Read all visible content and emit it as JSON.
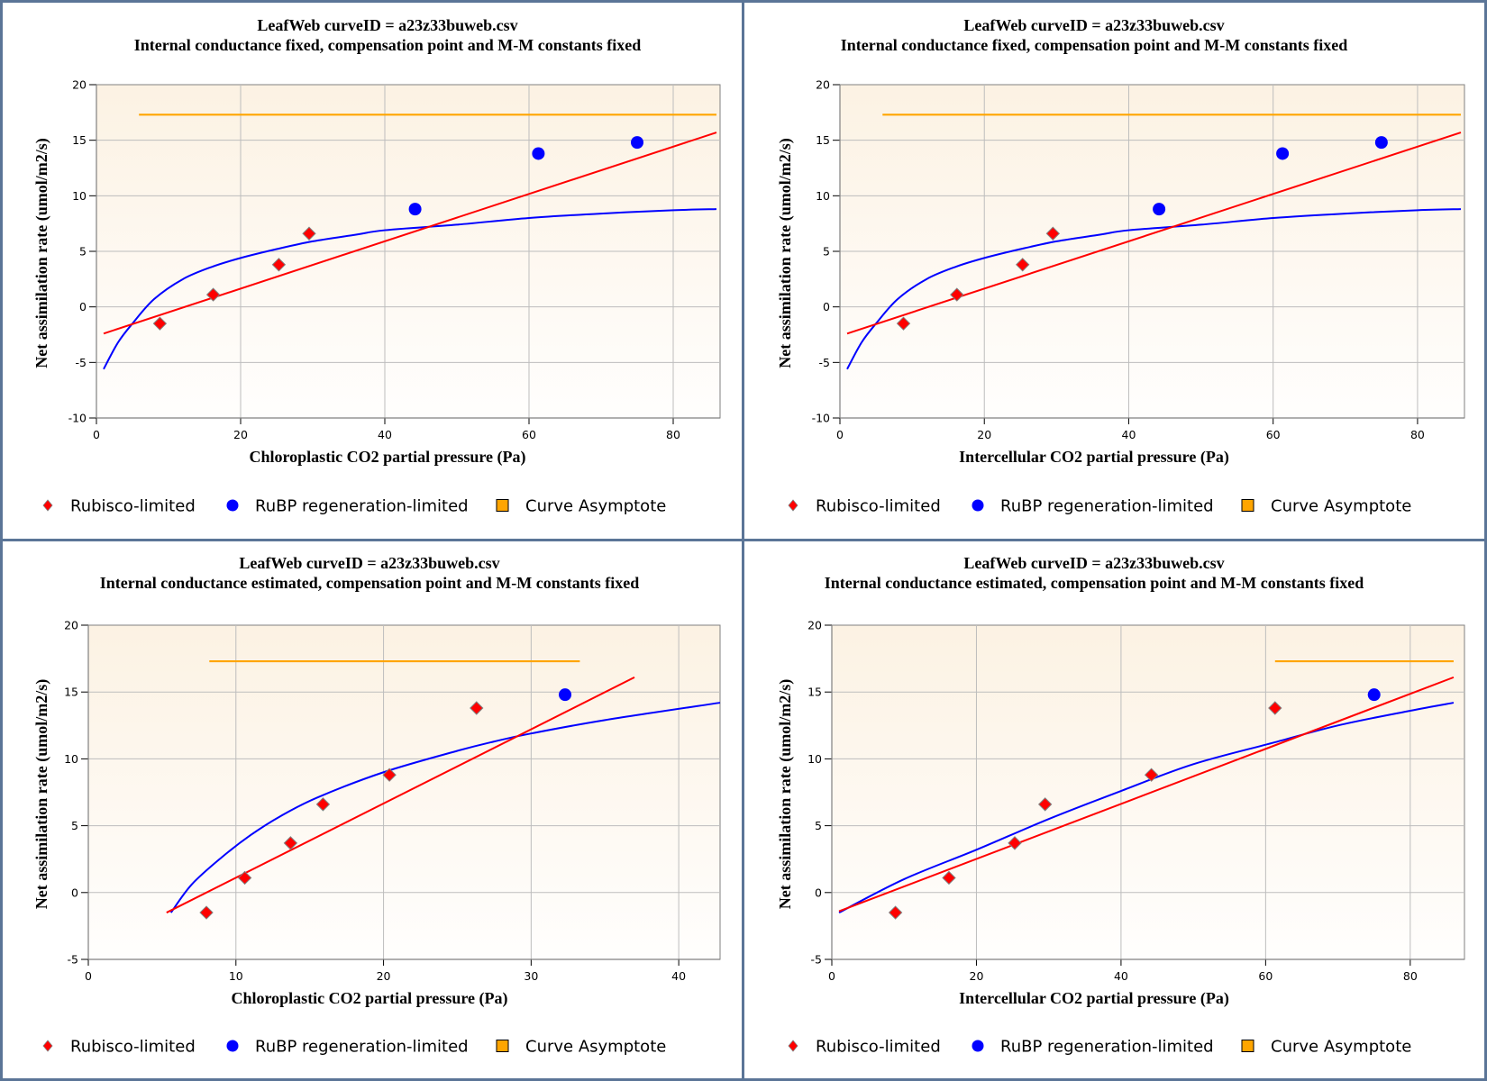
{
  "colors": {
    "rubisco": "#ff0000",
    "rubisco_outline": "#808080",
    "rubp": "#0000ff",
    "asymptote": "#ffa500",
    "panel_border": "#5b7597",
    "plot_bg_top": "#fcf2e3",
    "plot_bg_bottom": "#fffefd",
    "grid": "#bdbdbd",
    "axis": "#808080"
  },
  "chart_data": [
    {
      "type": "scatter",
      "title": "LeafWeb curveID = a23z33buweb.csv",
      "subtitle": "Internal conductance fixed, compensation point and M-M constants fixed",
      "xlabel": "Chloroplastic CO2 partial pressure (Pa)",
      "ylabel": "Net assimilation rate (umol/m2/s)",
      "xlim": [
        0,
        86.5
      ],
      "ylim": [
        -10,
        20
      ],
      "xticks": [
        0,
        20,
        40,
        60,
        80
      ],
      "yticks": [
        -10,
        -5,
        0,
        5,
        10,
        15,
        20
      ],
      "grid": true,
      "legend_position": "bottom",
      "legend": [
        "Rubisco-limited",
        "RuBP regeneration-limited",
        "Curve Asymptote"
      ],
      "series": [
        {
          "name": "Rubisco-limited",
          "kind": "points",
          "marker": "diamond",
          "x": [
            8.8,
            16.2,
            25.3,
            29.5
          ],
          "y": [
            -1.5,
            1.1,
            3.8,
            6.6
          ]
        },
        {
          "name": "RuBP regeneration-limited",
          "kind": "points",
          "marker": "circle",
          "x": [
            44.2,
            61.3,
            75.0
          ],
          "y": [
            8.8,
            13.8,
            14.8
          ]
        },
        {
          "name": "Rubisco-limited fit",
          "kind": "line",
          "x": [
            1,
            86
          ],
          "y": [
            -2.4,
            15.7
          ]
        },
        {
          "name": "RuBP regeneration-limited fit",
          "kind": "curve",
          "x": [
            1,
            3,
            5,
            8,
            12,
            16,
            20,
            25,
            30,
            36,
            40,
            50,
            60,
            70,
            80,
            86
          ],
          "y": [
            -5.6,
            -3.2,
            -1.5,
            0.7,
            2.5,
            3.6,
            4.4,
            5.2,
            5.9,
            6.5,
            6.9,
            7.4,
            8.0,
            8.4,
            8.7,
            8.8
          ]
        },
        {
          "name": "Curve Asymptote",
          "kind": "hline",
          "x": [
            5.9,
            86
          ],
          "y": [
            17.3,
            17.3
          ]
        }
      ]
    },
    {
      "type": "scatter",
      "title": "LeafWeb curveID = a23z33buweb.csv",
      "subtitle": "Internal conductance fixed, compensation point and M-M constants fixed",
      "xlabel": "Intercellular CO2 partial pressure (Pa)",
      "ylabel": "Net assimilation rate (umol/m2/s)",
      "xlim": [
        0,
        86.5
      ],
      "ylim": [
        -10,
        20
      ],
      "xticks": [
        0,
        20,
        40,
        60,
        80
      ],
      "yticks": [
        -10,
        -5,
        0,
        5,
        10,
        15,
        20
      ],
      "grid": true,
      "legend_position": "bottom",
      "legend": [
        "Rubisco-limited",
        "RuBP regeneration-limited",
        "Curve Asymptote"
      ],
      "series": [
        {
          "name": "Rubisco-limited",
          "kind": "points",
          "marker": "diamond",
          "x": [
            8.8,
            16.2,
            25.3,
            29.5
          ],
          "y": [
            -1.5,
            1.1,
            3.8,
            6.6
          ]
        },
        {
          "name": "RuBP regeneration-limited",
          "kind": "points",
          "marker": "circle",
          "x": [
            44.2,
            61.3,
            75.0
          ],
          "y": [
            8.8,
            13.8,
            14.8
          ]
        },
        {
          "name": "Rubisco-limited fit",
          "kind": "line",
          "x": [
            1,
            86
          ],
          "y": [
            -2.4,
            15.7
          ]
        },
        {
          "name": "RuBP regeneration-limited fit",
          "kind": "curve",
          "x": [
            1,
            3,
            5,
            8,
            12,
            16,
            20,
            25,
            30,
            36,
            40,
            50,
            60,
            70,
            80,
            86
          ],
          "y": [
            -5.6,
            -3.2,
            -1.5,
            0.7,
            2.5,
            3.6,
            4.4,
            5.2,
            5.9,
            6.5,
            6.9,
            7.4,
            8.0,
            8.4,
            8.7,
            8.8
          ]
        },
        {
          "name": "Curve Asymptote",
          "kind": "hline",
          "x": [
            5.9,
            86
          ],
          "y": [
            17.3,
            17.3
          ]
        }
      ]
    },
    {
      "type": "scatter",
      "title": "LeafWeb curveID = a23z33buweb.csv",
      "subtitle": "Internal conductance estimated, compensation point and M-M constants fixed",
      "xlabel": "Chloroplastic CO2 partial pressure (Pa)",
      "ylabel": "Net assimilation rate (umol/m2/s)",
      "xlim": [
        0,
        42.8
      ],
      "ylim": [
        -5,
        20
      ],
      "xticks": [
        0,
        10,
        20,
        30,
        40
      ],
      "yticks": [
        -5,
        0,
        5,
        10,
        15,
        20
      ],
      "grid": true,
      "legend_position": "bottom",
      "legend": [
        "Rubisco-limited",
        "RuBP regeneration-limited",
        "Curve Asymptote"
      ],
      "series": [
        {
          "name": "Rubisco-limited",
          "kind": "points",
          "marker": "diamond",
          "x": [
            8.0,
            10.6,
            13.7,
            15.9,
            20.4,
            26.3
          ],
          "y": [
            -1.5,
            1.1,
            3.7,
            6.6,
            8.8,
            13.8
          ]
        },
        {
          "name": "RuBP regeneration-limited",
          "kind": "points",
          "marker": "circle",
          "x": [
            32.3
          ],
          "y": [
            14.8
          ]
        },
        {
          "name": "Rubisco-limited fit",
          "kind": "line",
          "x": [
            5.3,
            37.0
          ],
          "y": [
            -1.5,
            16.1
          ]
        },
        {
          "name": "RuBP regeneration-limited fit",
          "kind": "curve",
          "x": [
            5.6,
            7,
            9,
            11,
            13,
            15.5,
            20,
            25,
            27.5,
            30,
            35,
            42.8
          ],
          "y": [
            -1.5,
            0.6,
            2.6,
            4.3,
            5.7,
            7.1,
            9.0,
            10.6,
            11.3,
            11.9,
            12.9,
            14.2
          ]
        },
        {
          "name": "Curve Asymptote",
          "kind": "hline",
          "x": [
            8.2,
            33.3
          ],
          "y": [
            17.3,
            17.3
          ]
        }
      ]
    },
    {
      "type": "scatter",
      "title": "LeafWeb curveID = a23z33buweb.csv",
      "subtitle": "Internal conductance estimated, compensation point and M-M constants fixed",
      "xlabel": "Intercellular CO2 partial pressure (Pa)",
      "ylabel": "Net assimilation rate (umol/m2/s)",
      "xlim": [
        0,
        87.5
      ],
      "ylim": [
        -5,
        20
      ],
      "xticks": [
        0,
        20,
        40,
        60,
        80
      ],
      "yticks": [
        -5,
        0,
        5,
        10,
        15,
        20
      ],
      "grid": true,
      "legend_position": "bottom",
      "legend": [
        "Rubisco-limited",
        "RuBP regeneration-limited",
        "Curve Asymptote"
      ],
      "series": [
        {
          "name": "Rubisco-limited",
          "kind": "points",
          "marker": "diamond",
          "x": [
            8.8,
            16.2,
            25.3,
            29.5,
            44.2,
            61.3
          ],
          "y": [
            -1.5,
            1.1,
            3.7,
            6.6,
            8.8,
            13.8
          ]
        },
        {
          "name": "RuBP regeneration-limited",
          "kind": "points",
          "marker": "circle",
          "x": [
            75.0
          ],
          "y": [
            14.8
          ]
        },
        {
          "name": "Rubisco-limited fit",
          "kind": "line",
          "x": [
            1,
            86
          ],
          "y": [
            -1.4,
            16.1
          ]
        },
        {
          "name": "RuBP regeneration-limited fit",
          "kind": "curve",
          "x": [
            1,
            10,
            20,
            30,
            40,
            50,
            61,
            70,
            80,
            86
          ],
          "y": [
            -1.5,
            1.0,
            3.2,
            5.5,
            7.6,
            9.6,
            11.2,
            12.5,
            13.6,
            14.2
          ]
        },
        {
          "name": "Curve Asymptote",
          "kind": "hline",
          "x": [
            61.3,
            86
          ],
          "y": [
            17.3,
            17.3
          ]
        }
      ]
    }
  ]
}
